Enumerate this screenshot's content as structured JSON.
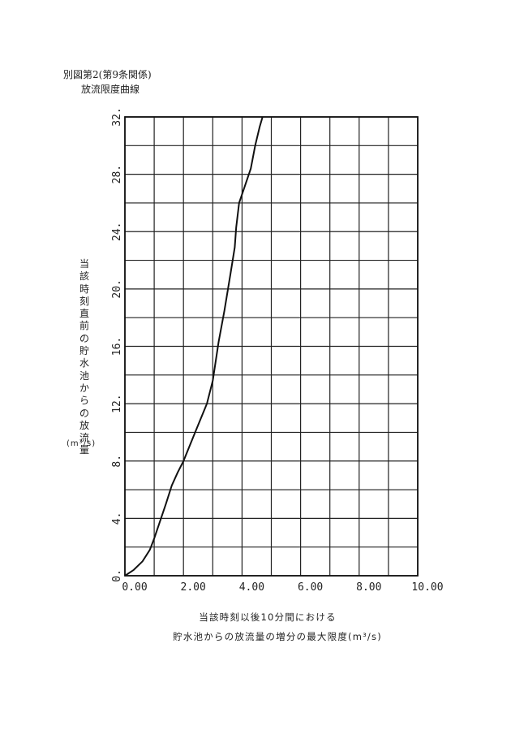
{
  "header": {
    "line1": "別図第2(第9条関係)",
    "line2": "放流限度曲線"
  },
  "axis_labels": {
    "y": "当該時刻直前の貯水池からの放流量",
    "y_unit": "(m³/s)",
    "x_line1": "当該時刻以後10分間における",
    "x_line2": "貯水池からの放流量の増分の最大限度(m³/s)"
  },
  "chart_data": {
    "type": "line",
    "title": "放流限度曲線",
    "xlabel": "当該時刻以後10分間における貯水池からの放流量の増分の最大限度(m³/s)",
    "ylabel": "当該時刻直前の貯水池からの放流量(m³/s)",
    "xlim": [
      0,
      10
    ],
    "ylim": [
      0,
      32
    ],
    "grid": true,
    "x_ticks": [
      "0.00",
      "2.00",
      "4.00",
      "6.00",
      "8.00",
      "10.00"
    ],
    "y_ticks": [
      "0.",
      "4.",
      "8.",
      "12.",
      "16.",
      "20.",
      "24.",
      "28.",
      "32."
    ],
    "series": [
      {
        "x": [
          0.0,
          0.3,
          0.6,
          0.85,
          1.0,
          1.2,
          1.4,
          1.6,
          1.8,
          2.0,
          2.4,
          2.8,
          3.0,
          3.2,
          3.4,
          3.6,
          3.75,
          3.8,
          3.9,
          4.1,
          4.3,
          4.45,
          4.6,
          4.7
        ],
        "y": [
          0.0,
          0.4,
          1.0,
          1.8,
          2.6,
          3.8,
          5.0,
          6.3,
          7.2,
          8.0,
          10.0,
          12.0,
          13.6,
          16.3,
          18.5,
          21.0,
          22.9,
          24.3,
          26.0,
          27.2,
          28.4,
          30.0,
          31.3,
          32.0
        ]
      }
    ]
  }
}
